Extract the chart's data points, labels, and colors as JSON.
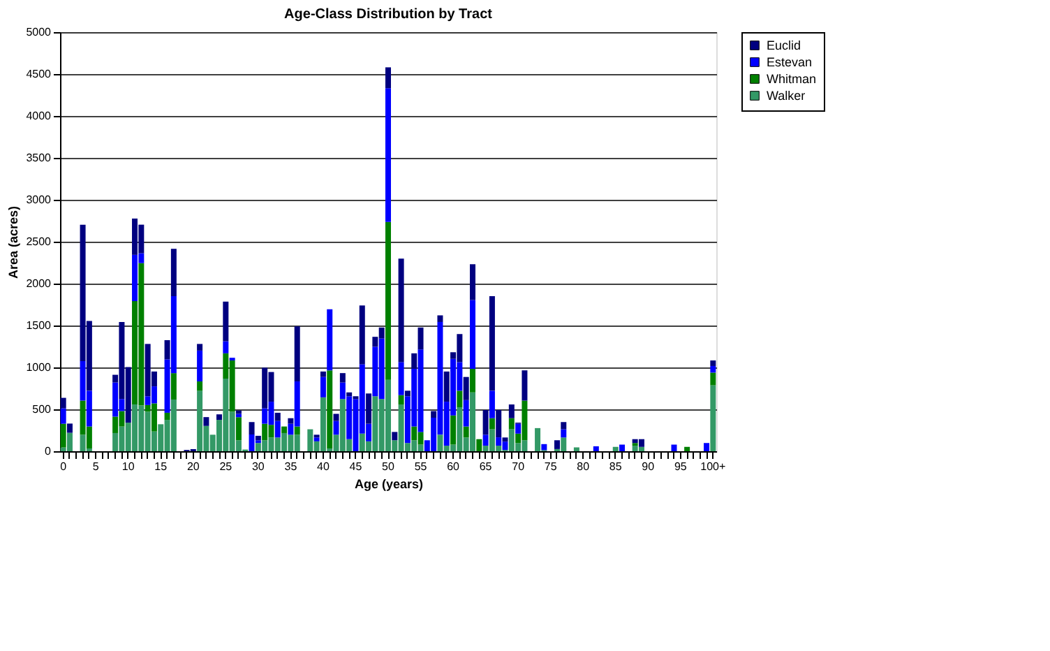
{
  "chart_data": {
    "type": "bar",
    "title": "Age-Class Distribution by Tract",
    "xlabel": "Age (years)",
    "ylabel": "Area (acres)",
    "categories": [
      "0",
      null,
      null,
      null,
      null,
      "5",
      null,
      null,
      null,
      null,
      "10",
      null,
      null,
      null,
      null,
      "15",
      null,
      null,
      null,
      null,
      "20",
      null,
      null,
      null,
      null,
      "25",
      null,
      null,
      null,
      null,
      "30",
      null,
      null,
      null,
      null,
      "35",
      null,
      null,
      null,
      null,
      "40",
      null,
      null,
      null,
      null,
      "45",
      null,
      null,
      null,
      null,
      "50",
      null,
      null,
      null,
      null,
      "55",
      null,
      null,
      null,
      null,
      "60",
      null,
      null,
      null,
      null,
      "65",
      null,
      null,
      null,
      null,
      "70",
      null,
      null,
      null,
      null,
      "75",
      null,
      null,
      null,
      null,
      "80",
      null,
      null,
      null,
      null,
      "85",
      null,
      null,
      null,
      null,
      "90",
      null,
      null,
      null,
      null,
      "95",
      null,
      null,
      null,
      null,
      "100+"
    ],
    "stacked": true,
    "series": [
      {
        "name": "Walker",
        "color": "#339966",
        "values": [
          45,
          220,
          0,
          197,
          33,
          0,
          0,
          0,
          217,
          295,
          341,
          558,
          545,
          472,
          236,
          322,
          374,
          617,
          0,
          0,
          0,
          722,
          302,
          197,
          374,
          866,
          472,
          131,
          20,
          0,
          98,
          131,
          164,
          164,
          217,
          197,
          197,
          0,
          262,
          118,
          643,
          33,
          197,
          623,
          144,
          0,
          210,
          118,
          656,
          623,
          853,
          131,
          558,
          98,
          131,
          79,
          0,
          0,
          197,
          66,
          79,
          525,
          164,
          702,
          0,
          66,
          262,
          66,
          15,
          262,
          98,
          131,
          0,
          276,
          13,
          0,
          26,
          164,
          0,
          46,
          0,
          0,
          0,
          0,
          0,
          52,
          0,
          0,
          66,
          52,
          0,
          0,
          0,
          0,
          0,
          0,
          0,
          0,
          0,
          0,
          787
        ]
      },
      {
        "name": "Whitman",
        "color": "#008000",
        "values": [
          283,
          0,
          0,
          407,
          262,
          0,
          0,
          0,
          196,
          184,
          0,
          1233,
          1699,
          79,
          335,
          0,
          85,
          315,
          0,
          0,
          0,
          111,
          0,
          0,
          0,
          302,
          611,
          276,
          0,
          0,
          0,
          197,
          151,
          0,
          78,
          0,
          98,
          0,
          0,
          0,
          0,
          932,
          0,
          0,
          0,
          0,
          0,
          0,
          0,
          0,
          1883,
          0,
          111,
          0,
          164,
          151,
          0,
          0,
          0,
          0,
          348,
          197,
          131,
          282,
          144,
          0,
          132,
          0,
          0,
          132,
          112,
          473,
          0,
          0,
          0,
          0,
          0,
          0,
          0,
          0,
          0,
          0,
          0,
          0,
          0,
          0,
          0,
          0,
          32,
          0,
          0,
          0,
          0,
          0,
          0,
          0,
          52,
          0,
          0,
          0,
          151
        ]
      },
      {
        "name": "Estevan",
        "color": "#0000ff",
        "values": [
          184,
          0,
          0,
          472,
          427,
          0,
          0,
          0,
          407,
          144,
          0,
          552,
          118,
          105,
          203,
          0,
          637,
          918,
          0,
          0,
          0,
          368,
          0,
          0,
          0,
          144,
          32,
          39,
          0,
          200,
          33,
          184,
          276,
          197,
          0,
          131,
          538,
          0,
          0,
          46,
          243,
          728,
          164,
          197,
          512,
          623,
          827,
          210,
          591,
          722,
          1595,
          0,
          394,
          558,
          689,
          984,
          131,
          400,
          1345,
          525,
          675,
          341,
          315,
          820,
          0,
          131,
          328,
          100,
          100,
          0,
          118,
          0,
          0,
          0,
          72,
          0,
          0,
          98,
          0,
          0,
          0,
          0,
          59,
          0,
          0,
          0,
          79,
          0,
          0,
          0,
          0,
          0,
          0,
          0,
          79,
          0,
          0,
          0,
          0,
          98,
          79
        ]
      },
      {
        "name": "Euclid",
        "color": "#000080",
        "values": [
          125,
          110,
          0,
          1627,
          833,
          0,
          0,
          0,
          92,
          919,
          663,
          433,
          341,
          624,
          177,
          0,
          229,
          565,
          0,
          15,
          25,
          79,
          105,
          0,
          66,
          473,
          0,
          40,
          0,
          148,
          53,
          485,
          354,
          98,
          0,
          66,
          657,
          0,
          0,
          33,
          65,
          0,
          85,
          112,
          46,
          33,
          702,
          361,
          118,
          131,
          249,
          99,
          1234,
          66,
          184,
          262,
          0,
          79,
          79,
          360,
          79,
          335,
          276,
          427,
          0,
          295,
          1128,
          326,
          49,
          164,
          13,
          361,
          0,
          0,
          0,
          0,
          105,
          86,
          0,
          0,
          0,
          0,
          0,
          0,
          0,
          0,
          0,
          0,
          46,
          92,
          0,
          0,
          0,
          0,
          0,
          0,
          0,
          0,
          0,
          0,
          66
        ]
      }
    ],
    "ylim": [
      0,
      5000
    ],
    "yticks": [
      0,
      500,
      1000,
      1500,
      2000,
      2500,
      3000,
      3500,
      4000,
      4500,
      5000
    ],
    "grid": "y",
    "legend": "right"
  }
}
